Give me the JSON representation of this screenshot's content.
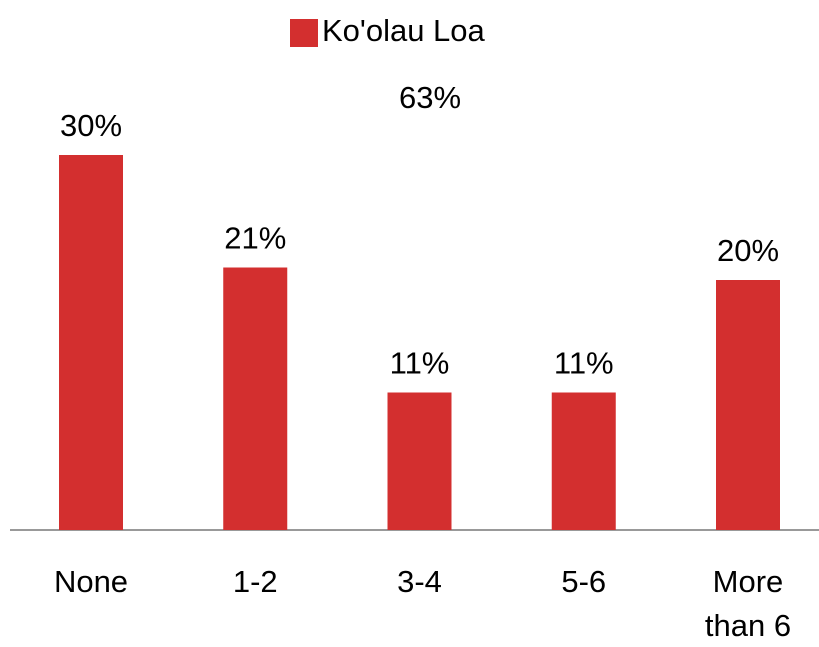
{
  "chart_data": {
    "type": "bar",
    "categories": [
      "None",
      "1-2",
      "3-4",
      "5-6",
      "More than 6"
    ],
    "values": [
      30,
      21,
      11,
      11,
      20
    ],
    "value_labels": [
      "30%",
      "21%",
      "11%",
      "11%",
      "20%"
    ],
    "series_name": "Ko'olau Loa",
    "annotation": "63%",
    "color": "#d32f2f",
    "ylim": [
      0,
      40
    ]
  }
}
